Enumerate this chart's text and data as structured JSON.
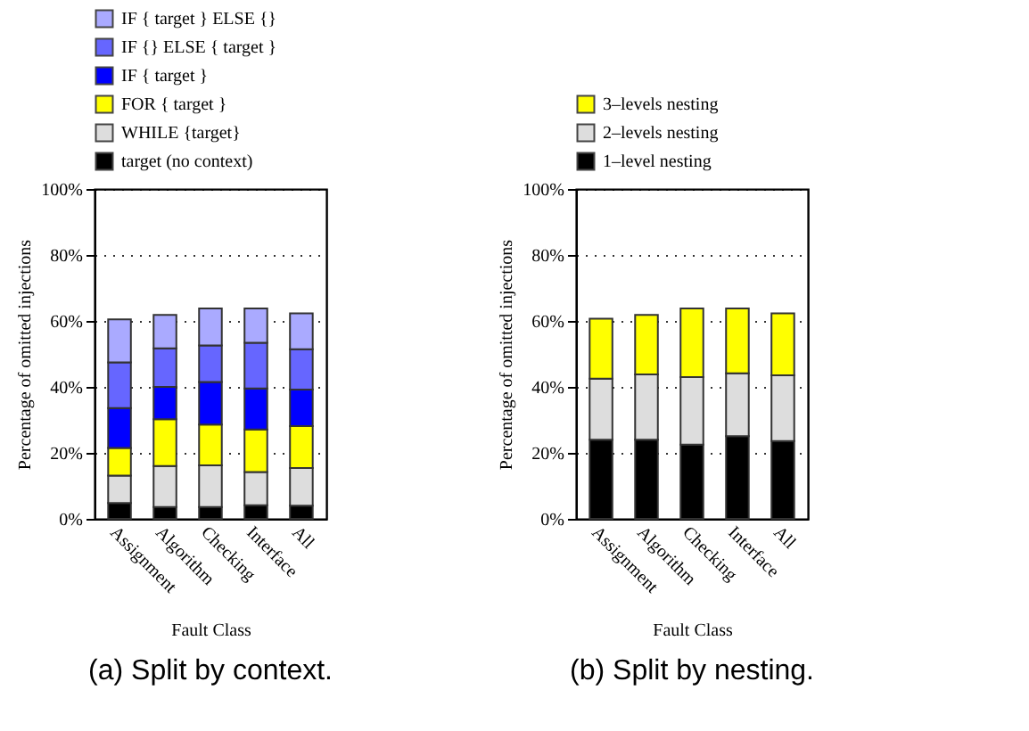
{
  "chart_data": [
    {
      "type": "bar",
      "title": "(a) Split by context.",
      "xlabel": "Fault Class",
      "ylabel": "Percentage of omitted injections",
      "stacked": true,
      "categories": [
        "Assignment",
        "Algorithm",
        "Checking",
        "Interface",
        "All"
      ],
      "ylim": [
        0,
        100
      ],
      "yticks": [
        {
          "value": 0,
          "label": "0%"
        },
        {
          "value": 20,
          "label": "20%"
        },
        {
          "value": 40,
          "label": "40%"
        },
        {
          "value": 60,
          "label": "60%"
        },
        {
          "value": 80,
          "label": "80%"
        },
        {
          "value": 100,
          "label": "100%"
        }
      ],
      "grid": "y",
      "legend": "top",
      "series": [
        {
          "name": "target (no context)",
          "color": "#000000",
          "values": [
            4.8,
            3.6,
            3.6,
            4.1,
            4.0
          ]
        },
        {
          "name": "WHILE {target}",
          "color": "#dddddd",
          "values": [
            8.3,
            12.4,
            12.6,
            10.1,
            11.4
          ]
        },
        {
          "name": "FOR { target }",
          "color": "#ffff00",
          "values": [
            8.4,
            14.2,
            12.4,
            12.9,
            12.7
          ]
        },
        {
          "name": "IF { target }",
          "color": "#0000ff",
          "values": [
            12.1,
            9.8,
            12.9,
            12.4,
            11.1
          ]
        },
        {
          "name": "IF {} ELSE { target }",
          "color": "#6666ff",
          "values": [
            13.8,
            11.7,
            11.1,
            13.9,
            12.2
          ]
        },
        {
          "name": "IF { target } ELSE {}",
          "color": "#aaaaff",
          "values": [
            13.1,
            10.1,
            11.2,
            10.4,
            10.9
          ]
        }
      ]
    },
    {
      "type": "bar",
      "title": "(b) Split by nesting.",
      "xlabel": "Fault Class",
      "ylabel": "Percentage of omitted injections",
      "stacked": true,
      "categories": [
        "Assignment",
        "Algorithm",
        "Checking",
        "Interface",
        "All"
      ],
      "ylim": [
        0,
        100
      ],
      "yticks": [
        {
          "value": 0,
          "label": "0%"
        },
        {
          "value": 20,
          "label": "20%"
        },
        {
          "value": 40,
          "label": "40%"
        },
        {
          "value": 60,
          "label": "60%"
        },
        {
          "value": 80,
          "label": "80%"
        },
        {
          "value": 100,
          "label": "100%"
        }
      ],
      "grid": "y",
      "legend": "top",
      "series": [
        {
          "name": "1–level nesting",
          "color": "#000000",
          "values": [
            24.0,
            24.0,
            22.5,
            25.1,
            23.6
          ]
        },
        {
          "name": "2–levels nesting",
          "color": "#dddddd",
          "values": [
            18.5,
            19.8,
            20.5,
            19.0,
            19.9
          ]
        },
        {
          "name": "3–levels nesting",
          "color": "#ffff00",
          "values": [
            18.2,
            18.0,
            20.8,
            19.7,
            18.8
          ]
        }
      ]
    }
  ]
}
